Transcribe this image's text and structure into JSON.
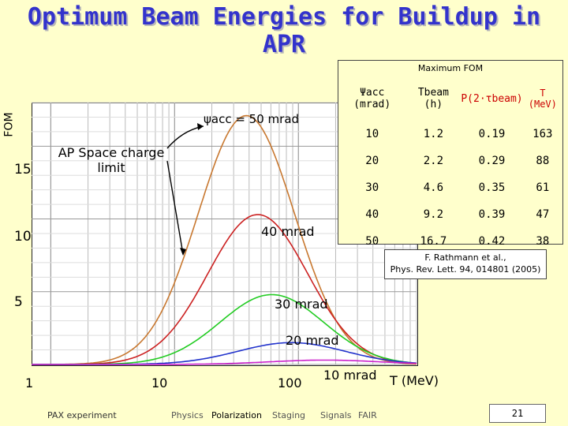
{
  "title": "Optimum Beam Energies for Buildup in APR",
  "chart_data": {
    "type": "line",
    "title": "Optimum Beam Energies for Buildup in APR",
    "xlabel": "T (MeV)",
    "ylabel": "FOM",
    "xscale": "log",
    "xlim": [
      0.7,
      900
    ],
    "ylim": [
      0,
      18
    ],
    "x_ticks": [
      "1",
      "10",
      "100"
    ],
    "y_ticks": [
      "5",
      "10",
      "15"
    ],
    "grid": true,
    "series": [
      {
        "name": "50 mrad",
        "color": "#c87830",
        "peak_x": 38,
        "peak_y": 17.1
      },
      {
        "name": "40 mrad",
        "color": "#cc2222",
        "peak_x": 47,
        "peak_y": 10.3
      },
      {
        "name": "30 mrad",
        "color": "#22cc22",
        "peak_x": 61,
        "peak_y": 4.8
      },
      {
        "name": "20 mrad",
        "color": "#2233cc",
        "peak_x": 88,
        "peak_y": 1.5
      },
      {
        "name": "10 mrad",
        "color": "#cc22cc",
        "peak_x": 163,
        "peak_y": 0.3
      }
    ],
    "annotations": {
      "psi50": "ψacc = 50 mrad",
      "ap_space": "AP Space charge limit",
      "m40": "40 mrad",
      "m30": "30 mrad",
      "m20": "20 mrad",
      "m10": "10 mrad"
    }
  },
  "table": {
    "caption": "Maximum FOM",
    "headers": [
      "Ψacc (mrad)",
      "Tbeam (h)",
      "P(2·τbeam)",
      "T (MeV)"
    ],
    "rows": [
      [
        "10",
        "1.2",
        "0.19",
        "163"
      ],
      [
        "20",
        "2.2",
        "0.29",
        "88"
      ],
      [
        "30",
        "4.6",
        "0.35",
        "61"
      ],
      [
        "40",
        "9.2",
        "0.39",
        "47"
      ],
      [
        "50",
        "16.7",
        "0.42",
        "38"
      ]
    ]
  },
  "reference": {
    "line1": "F. Rathmann et al.,",
    "line2": "Phys. Rev. Lett. 94, 014801 (2005)"
  },
  "footer": {
    "left": "PAX experiment",
    "nav": [
      "Physics",
      "Polarization",
      "Staging",
      "Signals",
      "FAIR"
    ],
    "page": "21"
  },
  "colors": {
    "title": "#3333cc",
    "background": "#ffffcc",
    "header_text": "#cc0000"
  }
}
